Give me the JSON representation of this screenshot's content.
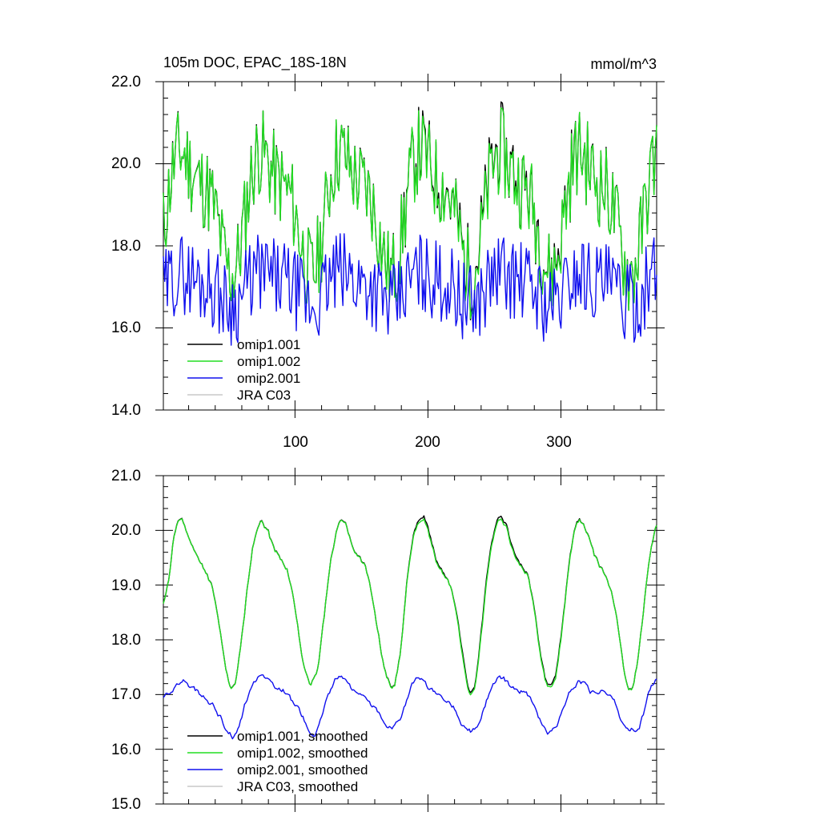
{
  "chart_data": [
    {
      "type": "line",
      "title": "105m DOC, EPAC_18S-18N",
      "units": "mmol/m^3",
      "xlabel": "",
      "ylabel": "",
      "xlim": [
        1,
        372
      ],
      "ylim": [
        14.0,
        22.0
      ],
      "x_ticks": [
        100,
        200,
        300
      ],
      "x_tick_labels": [
        "100",
        "200",
        "300"
      ],
      "y_ticks": [
        14.0,
        16.0,
        18.0,
        20.0,
        22.0
      ],
      "y_tick_labels": [
        "14.0",
        "16.0",
        "18.0",
        "20.0",
        "22.0"
      ],
      "legend_position": "bottom-left",
      "legend": [
        "omip1.001",
        "omip1.002",
        "omip2.001",
        "JRA C03"
      ],
      "series": [
        {
          "name": "omip1.001",
          "color": "#000000",
          "seed": 11,
          "base": 19.0,
          "amp": 1.3,
          "noise": 1.1,
          "diverge": 0.25
        },
        {
          "name": "omip1.002",
          "color": "#22dd22",
          "seed": 11,
          "base": 19.0,
          "amp": 1.3,
          "noise": 1.1,
          "diverge": 0.0
        },
        {
          "name": "omip2.001",
          "color": "#1010ee",
          "seed": 29,
          "base": 17.0,
          "amp": 0.35,
          "noise": 1.0,
          "diverge": 0.0
        },
        {
          "name": "JRA C03",
          "color": "#c8c8c8",
          "seed": 0,
          "base": null,
          "amp": 0,
          "noise": 0,
          "diverge": 0.0
        }
      ]
    },
    {
      "type": "line",
      "title": "",
      "units": "",
      "xlabel": "",
      "ylabel": "",
      "xlim": [
        1,
        372
      ],
      "ylim": [
        15.0,
        21.0
      ],
      "x_ticks": [
        100,
        200,
        300
      ],
      "x_tick_labels": [
        "",
        "",
        ""
      ],
      "y_ticks": [
        15.0,
        16.0,
        17.0,
        18.0,
        19.0,
        20.0,
        21.0
      ],
      "y_tick_labels": [
        "15.0",
        "16.0",
        "17.0",
        "18.0",
        "19.0",
        "20.0",
        "21.0"
      ],
      "legend_position": "bottom-left",
      "legend": [
        "omip1.001, smoothed",
        "omip1.002, smoothed",
        "omip2.001, smoothed",
        "JRA C03, smoothed"
      ],
      "series": [
        {
          "name": "omip1.001, smoothed",
          "color": "#000000",
          "seed": 11,
          "base": 18.85,
          "amp": 1.4,
          "noise": 0.35,
          "diverge": 0.15
        },
        {
          "name": "omip1.002, smoothed",
          "color": "#22dd22",
          "seed": 11,
          "base": 18.85,
          "amp": 1.4,
          "noise": 0.35,
          "diverge": 0.0
        },
        {
          "name": "omip2.001, smoothed",
          "color": "#1010ee",
          "seed": 29,
          "base": 16.85,
          "amp": 0.45,
          "noise": 0.3,
          "diverge": 0.0
        },
        {
          "name": "JRA C03, smoothed",
          "color": "#c8c8c8",
          "seed": 0,
          "base": null,
          "amp": 0,
          "noise": 0,
          "diverge": 0.0
        }
      ]
    }
  ]
}
